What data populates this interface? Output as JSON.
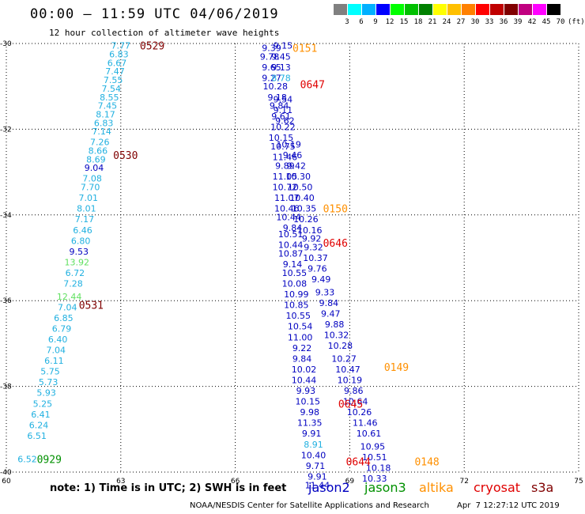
{
  "title": "00:00 – 11:59 UTC 04/06/2019",
  "subtitle": "12 hour collection of altimeter wave heights",
  "legend": {
    "unit": "(ft)",
    "labels": [
      "3",
      "6",
      "9",
      "12",
      "15",
      "18",
      "21",
      "24",
      "27",
      "30",
      "33",
      "36",
      "39",
      "42",
      "45",
      "70"
    ],
    "colors": [
      "#808080",
      "#00ffff",
      "#00b0ff",
      "#0000ff",
      "#00ff00",
      "#00c000",
      "#008000",
      "#ffff00",
      "#ffc000",
      "#ff8000",
      "#ff0000",
      "#c00000",
      "#800000",
      "#c00080",
      "#ff00ff",
      "#000000"
    ]
  },
  "axes": {
    "x_ticks": [
      "60",
      "63",
      "66",
      "69",
      "72",
      "75"
    ],
    "y_ticks": [
      "-30",
      "-32",
      "-34",
      "-36",
      "-38",
      "-40"
    ],
    "x_range": [
      60,
      75
    ],
    "y_range": [
      -30,
      -40
    ],
    "grid": "dotted"
  },
  "colors": {
    "swh_6_9": "#20b0e0",
    "swh_9_12": "#0000c0",
    "swh_12_15": "#60e060",
    "jason2": "#0000c0",
    "jason3": "#009000",
    "altika": "#ff9000",
    "cryosat": "#e00000",
    "s3a": "#800000"
  },
  "note": "note: 1) Time is in UTC; 2) SWH is in feet",
  "satellites": [
    "jason2",
    "jason3",
    "altika",
    "cryosat",
    "s3a"
  ],
  "footer_left": "NOAA/NESDIS Center for Satellite Applications and Research",
  "footer_right": "Apr  7 12:27:12 UTC 2019",
  "chart_data": {
    "type": "scatter",
    "xlabel": "",
    "ylabel": "",
    "xlim": [
      60,
      75
    ],
    "ylim": [
      -40,
      -30
    ],
    "time_labels": [
      {
        "label": "0529",
        "lon": 63.5,
        "lat": -30.05,
        "color": "#800000"
      },
      {
        "label": "0530",
        "lon": 62.8,
        "lat": -32.6,
        "color": "#800000"
      },
      {
        "label": "0531",
        "lon": 61.9,
        "lat": -36.1,
        "color": "#800000"
      },
      {
        "label": "0929",
        "lon": 60.8,
        "lat": -39.7,
        "color": "#009000"
      },
      {
        "label": "0151",
        "lon": 67.5,
        "lat": -30.1,
        "color": "#ff9000"
      },
      {
        "label": "0647",
        "lon": 67.7,
        "lat": -30.95,
        "color": "#e00000"
      },
      {
        "label": "0150",
        "lon": 68.3,
        "lat": -33.85,
        "color": "#ff9000"
      },
      {
        "label": "0646",
        "lon": 68.3,
        "lat": -34.65,
        "color": "#e00000"
      },
      {
        "label": "0149",
        "lon": 69.9,
        "lat": -37.55,
        "color": "#ff9000"
      },
      {
        "label": "0645",
        "lon": 68.7,
        "lat": -38.4,
        "color": "#e00000"
      },
      {
        "label": "0644",
        "lon": 68.9,
        "lat": -39.75,
        "color": "#e00000"
      },
      {
        "label": "0148",
        "lon": 70.7,
        "lat": -39.75,
        "color": "#ff9000"
      }
    ],
    "series": [
      {
        "name": "",
        "color_key": "track_west",
        "points": [
          {
            "lon": 63.0,
            "lat": -30.05,
            "v": "7.77",
            "c": "swh_6_9"
          },
          {
            "lon": 62.95,
            "lat": -30.25,
            "v": "6.83",
            "c": "swh_6_9"
          },
          {
            "lon": 62.9,
            "lat": -30.45,
            "v": "6.67",
            "c": "swh_6_9"
          },
          {
            "lon": 62.85,
            "lat": -30.65,
            "v": "7.47",
            "c": "swh_6_9"
          },
          {
            "lon": 62.8,
            "lat": -30.85,
            "v": "7.55",
            "c": "swh_6_9"
          },
          {
            "lon": 62.75,
            "lat": -31.05,
            "v": "7.54",
            "c": "swh_6_9"
          },
          {
            "lon": 62.7,
            "lat": -31.25,
            "v": "8.55",
            "c": "swh_6_9"
          },
          {
            "lon": 62.65,
            "lat": -31.45,
            "v": "7.45",
            "c": "swh_6_9"
          },
          {
            "lon": 62.6,
            "lat": -31.65,
            "v": "8.17",
            "c": "swh_6_9"
          },
          {
            "lon": 62.55,
            "lat": -31.85,
            "v": "6.83",
            "c": "swh_6_9"
          },
          {
            "lon": 62.5,
            "lat": -32.05,
            "v": "7.14",
            "c": "swh_6_9"
          },
          {
            "lon": 62.45,
            "lat": -32.3,
            "v": "7.26",
            "c": "swh_6_9"
          },
          {
            "lon": 62.4,
            "lat": -32.5,
            "v": "8.66",
            "c": "swh_6_9"
          },
          {
            "lon": 62.35,
            "lat": -32.7,
            "v": "8.69",
            "c": "swh_6_9"
          },
          {
            "lon": 62.3,
            "lat": -32.9,
            "v": "9.04",
            "c": "swh_9_12"
          },
          {
            "lon": 62.25,
            "lat": -33.15,
            "v": "7.08",
            "c": "swh_6_9"
          },
          {
            "lon": 62.2,
            "lat": -33.35,
            "v": "7.70",
            "c": "swh_6_9"
          },
          {
            "lon": 62.15,
            "lat": -33.6,
            "v": "7.01",
            "c": "swh_6_9"
          },
          {
            "lon": 62.1,
            "lat": -33.85,
            "v": "8.01",
            "c": "swh_6_9"
          },
          {
            "lon": 62.05,
            "lat": -34.1,
            "v": "7.17",
            "c": "swh_6_9"
          },
          {
            "lon": 62.0,
            "lat": -34.35,
            "v": "6.46",
            "c": "swh_6_9"
          },
          {
            "lon": 61.95,
            "lat": -34.6,
            "v": "6.80",
            "c": "swh_6_9"
          },
          {
            "lon": 61.9,
            "lat": -34.85,
            "v": "9.53",
            "c": "swh_9_12"
          },
          {
            "lon": 61.85,
            "lat": -35.1,
            "v": "13.92",
            "c": "swh_12_15"
          },
          {
            "lon": 61.8,
            "lat": -35.35,
            "v": "6.72",
            "c": "swh_6_9"
          },
          {
            "lon": 61.75,
            "lat": -35.6,
            "v": "7.28",
            "c": "swh_6_9"
          },
          {
            "lon": 61.65,
            "lat": -35.9,
            "v": "12.44",
            "c": "swh_12_15"
          },
          {
            "lon": 61.6,
            "lat": -36.15,
            "v": "7.04",
            "c": "swh_6_9"
          },
          {
            "lon": 61.5,
            "lat": -36.4,
            "v": "6.85",
            "c": "swh_6_9"
          },
          {
            "lon": 61.45,
            "lat": -36.65,
            "v": "6.79",
            "c": "swh_6_9"
          },
          {
            "lon": 61.35,
            "lat": -36.9,
            "v": "6.40",
            "c": "swh_6_9"
          },
          {
            "lon": 61.3,
            "lat": -37.15,
            "v": "7.04",
            "c": "swh_6_9"
          },
          {
            "lon": 61.25,
            "lat": -37.4,
            "v": "6.11",
            "c": "swh_6_9"
          },
          {
            "lon": 61.15,
            "lat": -37.65,
            "v": "5.75",
            "c": "swh_6_9"
          },
          {
            "lon": 61.1,
            "lat": -37.9,
            "v": "5.73",
            "c": "swh_6_9"
          },
          {
            "lon": 61.05,
            "lat": -38.15,
            "v": "5.93",
            "c": "swh_6_9"
          },
          {
            "lon": 60.95,
            "lat": -38.4,
            "v": "5.25",
            "c": "swh_6_9"
          },
          {
            "lon": 60.9,
            "lat": -38.65,
            "v": "6.41",
            "c": "swh_6_9"
          },
          {
            "lon": 60.85,
            "lat": -38.9,
            "v": "6.24",
            "c": "swh_6_9"
          },
          {
            "lon": 60.8,
            "lat": -39.15,
            "v": "6.51",
            "c": "swh_6_9"
          },
          {
            "lon": 60.55,
            "lat": -39.7,
            "v": "6.52",
            "c": "swh_6_9"
          }
        ]
      },
      {
        "name": "",
        "color_key": "track_mid",
        "points": [
          {
            "lon": 66.95,
            "lat": -30.1,
            "v": "9.39",
            "c": "swh_9_12"
          },
          {
            "lon": 66.9,
            "lat": -30.3,
            "v": "9.78",
            "c": "swh_9_12"
          },
          {
            "lon": 66.95,
            "lat": -30.55,
            "v": "9.65",
            "c": "swh_9_12"
          },
          {
            "lon": 66.95,
            "lat": -30.8,
            "v": "9.27",
            "c": "swh_9_12"
          },
          {
            "lon": 67.05,
            "lat": -31.0,
            "v": "10.28",
            "c": "swh_9_12"
          },
          {
            "lon": 67.1,
            "lat": -31.25,
            "v": "9.18",
            "c": "swh_9_12"
          },
          {
            "lon": 67.15,
            "lat": -31.45,
            "v": "9.84",
            "c": "swh_9_12"
          },
          {
            "lon": 67.2,
            "lat": -31.7,
            "v": "9.61",
            "c": "swh_9_12"
          },
          {
            "lon": 67.25,
            "lat": -31.95,
            "v": "10.22",
            "c": "swh_9_12"
          },
          {
            "lon": 67.2,
            "lat": -32.2,
            "v": "10.15",
            "c": "swh_9_12"
          },
          {
            "lon": 67.25,
            "lat": -32.4,
            "v": "10.75",
            "c": "swh_9_12"
          },
          {
            "lon": 67.3,
            "lat": -32.65,
            "v": "11.46",
            "c": "swh_9_12"
          },
          {
            "lon": 67.3,
            "lat": -32.85,
            "v": "9.89",
            "c": "swh_9_12"
          },
          {
            "lon": 67.3,
            "lat": -33.1,
            "v": "11.05",
            "c": "swh_9_12"
          },
          {
            "lon": 67.3,
            "lat": -33.35,
            "v": "10.72",
            "c": "swh_9_12"
          },
          {
            "lon": 67.35,
            "lat": -33.6,
            "v": "11.07",
            "c": "swh_9_12"
          },
          {
            "lon": 67.35,
            "lat": -33.85,
            "v": "10.46",
            "c": "swh_9_12"
          },
          {
            "lon": 67.4,
            "lat": -34.05,
            "v": "10.44",
            "c": "swh_9_12"
          },
          {
            "lon": 67.5,
            "lat": -34.3,
            "v": "9.84",
            "c": "swh_9_12"
          },
          {
            "lon": 67.45,
            "lat": -34.45,
            "v": "10.51",
            "c": "swh_9_12"
          },
          {
            "lon": 67.45,
            "lat": -34.7,
            "v": "10.44",
            "c": "swh_9_12"
          },
          {
            "lon": 67.45,
            "lat": -34.9,
            "v": "10.87",
            "c": "swh_9_12"
          },
          {
            "lon": 67.5,
            "lat": -35.15,
            "v": "9.14",
            "c": "swh_9_12"
          },
          {
            "lon": 67.55,
            "lat": -35.35,
            "v": "10.55",
            "c": "swh_9_12"
          },
          {
            "lon": 67.55,
            "lat": -35.6,
            "v": "10.08",
            "c": "swh_9_12"
          },
          {
            "lon": 67.6,
            "lat": -35.85,
            "v": "10.99",
            "c": "swh_9_12"
          },
          {
            "lon": 67.6,
            "lat": -36.1,
            "v": "10.85",
            "c": "swh_9_12"
          },
          {
            "lon": 67.65,
            "lat": -36.35,
            "v": "10.55",
            "c": "swh_9_12"
          },
          {
            "lon": 67.7,
            "lat": -36.6,
            "v": "10.54",
            "c": "swh_9_12"
          },
          {
            "lon": 67.7,
            "lat": -36.85,
            "v": "11.00",
            "c": "swh_9_12"
          },
          {
            "lon": 67.75,
            "lat": -37.1,
            "v": "9.22",
            "c": "swh_9_12"
          },
          {
            "lon": 67.75,
            "lat": -37.35,
            "v": "9.84",
            "c": "swh_9_12"
          },
          {
            "lon": 67.8,
            "lat": -37.6,
            "v": "10.02",
            "c": "swh_9_12"
          },
          {
            "lon": 67.8,
            "lat": -37.85,
            "v": "10.44",
            "c": "swh_9_12"
          },
          {
            "lon": 67.85,
            "lat": -38.1,
            "v": "9.93",
            "c": "swh_9_12"
          },
          {
            "lon": 67.9,
            "lat": -38.35,
            "v": "10.15",
            "c": "swh_9_12"
          },
          {
            "lon": 67.95,
            "lat": -38.6,
            "v": "9.98",
            "c": "swh_9_12"
          },
          {
            "lon": 67.95,
            "lat": -38.85,
            "v": "11.35",
            "c": "swh_9_12"
          },
          {
            "lon": 68.0,
            "lat": -39.1,
            "v": "9.91",
            "c": "swh_9_12"
          },
          {
            "lon": 68.05,
            "lat": -39.35,
            "v": "8.91",
            "c": "swh_6_9"
          },
          {
            "lon": 68.05,
            "lat": -39.6,
            "v": "10.40",
            "c": "swh_9_12"
          },
          {
            "lon": 68.1,
            "lat": -39.85,
            "v": "9.71",
            "c": "swh_9_12"
          },
          {
            "lon": 68.15,
            "lat": -40.1,
            "v": "9.91",
            "c": "swh_9_12"
          },
          {
            "lon": 68.15,
            "lat": -40.3,
            "v": "11.44",
            "c": "swh_9_12"
          }
        ]
      },
      {
        "name": "",
        "color_key": "track_east",
        "points": [
          {
            "lon": 67.25,
            "lat": -30.05,
            "v": "9.15",
            "c": "swh_9_12"
          },
          {
            "lon": 67.2,
            "lat": -30.3,
            "v": "9.45",
            "c": "swh_9_12"
          },
          {
            "lon": 67.2,
            "lat": -30.55,
            "v": "9.13",
            "c": "swh_9_12"
          },
          {
            "lon": 67.2,
            "lat": -30.8,
            "v": "8.78",
            "c": "swh_6_9"
          },
          {
            "lon": 67.25,
            "lat": -31.3,
            "v": "9.54",
            "c": "swh_9_12"
          },
          {
            "lon": 67.25,
            "lat": -31.55,
            "v": "9.11",
            "c": "swh_9_12"
          },
          {
            "lon": 67.3,
            "lat": -31.8,
            "v": "9.62",
            "c": "swh_9_12"
          },
          {
            "lon": 67.4,
            "lat": -32.35,
            "v": "10.19",
            "c": "swh_9_12"
          },
          {
            "lon": 67.5,
            "lat": -32.6,
            "v": "9.46",
            "c": "swh_9_12"
          },
          {
            "lon": 67.6,
            "lat": -32.85,
            "v": "9.42",
            "c": "swh_9_12"
          },
          {
            "lon": 67.65,
            "lat": -33.1,
            "v": "10.30",
            "c": "swh_9_12"
          },
          {
            "lon": 67.7,
            "lat": -33.35,
            "v": "10.50",
            "c": "swh_9_12"
          },
          {
            "lon": 67.75,
            "lat": -33.6,
            "v": "10.40",
            "c": "swh_9_12"
          },
          {
            "lon": 67.8,
            "lat": -33.85,
            "v": "10.35",
            "c": "swh_9_12"
          },
          {
            "lon": 67.85,
            "lat": -34.1,
            "v": "10.26",
            "c": "swh_9_12"
          },
          {
            "lon": 67.95,
            "lat": -34.35,
            "v": "10.16",
            "c": "swh_9_12"
          },
          {
            "lon": 68.0,
            "lat": -34.55,
            "v": "9.92",
            "c": "swh_9_12"
          },
          {
            "lon": 68.05,
            "lat": -34.75,
            "v": "9.32",
            "c": "swh_9_12"
          },
          {
            "lon": 68.1,
            "lat": -35.0,
            "v": "10.37",
            "c": "swh_9_12"
          },
          {
            "lon": 68.15,
            "lat": -35.25,
            "v": "9.76",
            "c": "swh_9_12"
          },
          {
            "lon": 68.25,
            "lat": -35.5,
            "v": "9.49",
            "c": "swh_9_12"
          },
          {
            "lon": 68.35,
            "lat": -35.8,
            "v": "9.33",
            "c": "swh_9_12"
          },
          {
            "lon": 68.45,
            "lat": -36.05,
            "v": "9.84",
            "c": "swh_9_12"
          },
          {
            "lon": 68.5,
            "lat": -36.3,
            "v": "9.47",
            "c": "swh_9_12"
          },
          {
            "lon": 68.6,
            "lat": -36.55,
            "v": "9.88",
            "c": "swh_9_12"
          },
          {
            "lon": 68.65,
            "lat": -36.8,
            "v": "10.32",
            "c": "swh_9_12"
          },
          {
            "lon": 68.75,
            "lat": -37.05,
            "v": "10.28",
            "c": "swh_9_12"
          },
          {
            "lon": 68.85,
            "lat": -37.35,
            "v": "10.27",
            "c": "swh_9_12"
          },
          {
            "lon": 68.95,
            "lat": -37.6,
            "v": "10.47",
            "c": "swh_9_12"
          },
          {
            "lon": 69.0,
            "lat": -37.85,
            "v": "10.19",
            "c": "swh_9_12"
          },
          {
            "lon": 69.1,
            "lat": -38.1,
            "v": "9.86",
            "c": "swh_9_12"
          },
          {
            "lon": 69.15,
            "lat": -38.35,
            "v": "10.64",
            "c": "swh_9_12"
          },
          {
            "lon": 69.25,
            "lat": -38.6,
            "v": "10.26",
            "c": "swh_9_12"
          },
          {
            "lon": 69.4,
            "lat": -38.85,
            "v": "11.46",
            "c": "swh_9_12"
          },
          {
            "lon": 69.5,
            "lat": -39.1,
            "v": "10.61",
            "c": "swh_9_12"
          },
          {
            "lon": 69.6,
            "lat": -39.4,
            "v": "10.95",
            "c": "swh_9_12"
          },
          {
            "lon": 69.65,
            "lat": -39.65,
            "v": "10.51",
            "c": "swh_9_12"
          },
          {
            "lon": 69.75,
            "lat": -39.9,
            "v": "10.18",
            "c": "swh_9_12"
          },
          {
            "lon": 69.65,
            "lat": -40.15,
            "v": "10.33",
            "c": "swh_9_12"
          }
        ]
      }
    ]
  }
}
